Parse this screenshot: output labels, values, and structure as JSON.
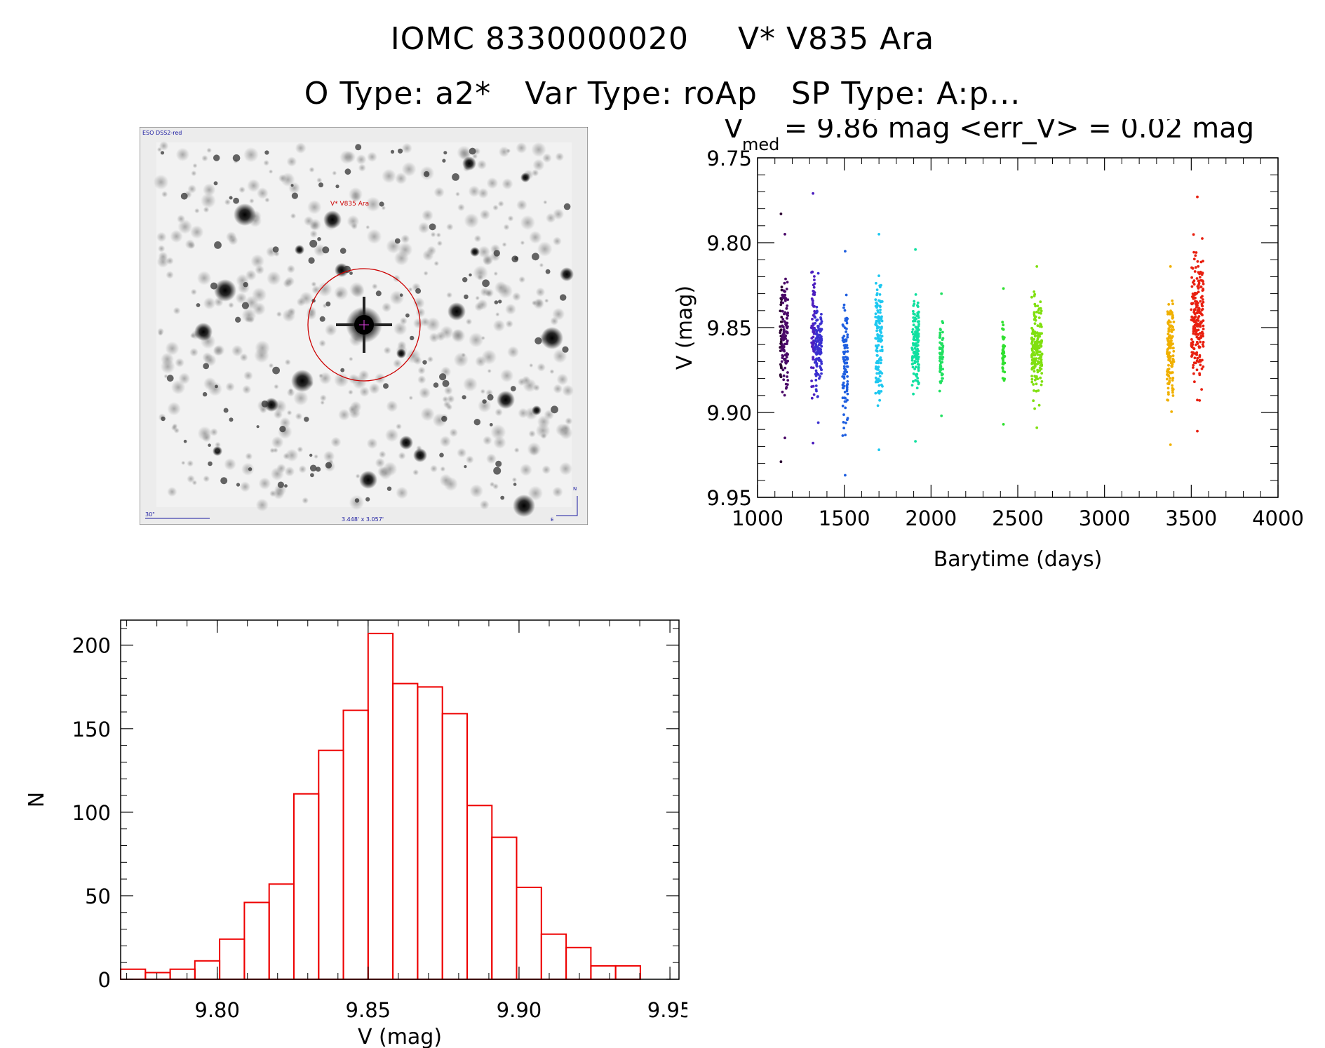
{
  "header": {
    "line1_id": "IOMC 8330000020",
    "line1_name": "V* V835 Ara",
    "line2_otype": "O Type: a2*",
    "line2_vartype": "Var Type: roAp",
    "line2_sptype": "SP Type: A:p..."
  },
  "finder": {
    "survey_label": "ESO DSS2-red",
    "target_label": "V* V835 Ara",
    "scale_label": "30\"",
    "fov_label": "3.448' x 3.057'",
    "compass_n": "N",
    "compass_e": "E",
    "colors": {
      "circle": "#cc0000",
      "labels": "#1a1aa0",
      "target_label": "#cc0000"
    }
  },
  "chart_data": [
    {
      "type": "scatter",
      "title_main": "V",
      "title_sub": "med",
      "title_rest": " = 9.86 mag <err_V> = 0.02 mag",
      "xlabel": "Barytime (days)",
      "ylabel": "V (mag)",
      "xlim": [
        1000,
        4000
      ],
      "ylim": [
        9.75,
        9.95
      ],
      "y_inverted": true,
      "xticks": [
        "1000",
        "1500",
        "2000",
        "2500",
        "3000",
        "3500",
        "4000"
      ],
      "yticks": [
        "9.75",
        "9.80",
        "9.85",
        "9.90",
        "9.95"
      ],
      "color_map": "rainbow by time",
      "groups": [
        {
          "x_min": 1130,
          "x_max": 1140,
          "y_min": 9.783,
          "y_max": 9.929,
          "color": "#2a0030"
        },
        {
          "x_min": 1140,
          "x_max": 1175,
          "y_min": 9.795,
          "y_max": 9.915,
          "color": "#4a0868"
        },
        {
          "x_min": 1310,
          "x_max": 1330,
          "y_min": 9.771,
          "y_max": 9.918,
          "color": "#4d1fbf"
        },
        {
          "x_min": 1330,
          "x_max": 1370,
          "y_min": 9.818,
          "y_max": 9.906,
          "color": "#3a30d0"
        },
        {
          "x_min": 1490,
          "x_max": 1520,
          "y_min": 9.805,
          "y_max": 9.937,
          "color": "#1f5fe0"
        },
        {
          "x_min": 1680,
          "x_max": 1720,
          "y_min": 9.795,
          "y_max": 9.922,
          "color": "#1ec8f0"
        },
        {
          "x_min": 1890,
          "x_max": 1930,
          "y_min": 9.804,
          "y_max": 9.917,
          "color": "#10e0a0"
        },
        {
          "x_min": 2050,
          "x_max": 2070,
          "y_min": 9.83,
          "y_max": 9.902,
          "color": "#20e060"
        },
        {
          "x_min": 2410,
          "x_max": 2425,
          "y_min": 9.827,
          "y_max": 9.907,
          "color": "#30e030"
        },
        {
          "x_min": 2580,
          "x_max": 2640,
          "y_min": 9.814,
          "y_max": 9.909,
          "color": "#80e010"
        },
        {
          "x_min": 3360,
          "x_max": 3400,
          "y_min": 9.814,
          "y_max": 9.919,
          "color": "#f0b000"
        },
        {
          "x_min": 3500,
          "x_max": 3570,
          "y_min": 9.773,
          "y_max": 9.911,
          "color": "#e82010"
        }
      ]
    },
    {
      "type": "bar",
      "histogram": true,
      "xlabel": "V (mag)",
      "ylabel": "N",
      "xlim": [
        9.768,
        9.953
      ],
      "ylim": [
        0,
        215
      ],
      "xticks": [
        "9.80",
        "9.85",
        "9.90",
        "9.95"
      ],
      "yticks": [
        "0",
        "50",
        "100",
        "150",
        "200"
      ],
      "bin_start": 9.768,
      "bin_width": 0.0082,
      "values": [
        6,
        4,
        6,
        11,
        24,
        46,
        57,
        111,
        137,
        161,
        207,
        177,
        175,
        159,
        104,
        85,
        55,
        27,
        19,
        8,
        8
      ],
      "color": "#ee0000"
    }
  ]
}
